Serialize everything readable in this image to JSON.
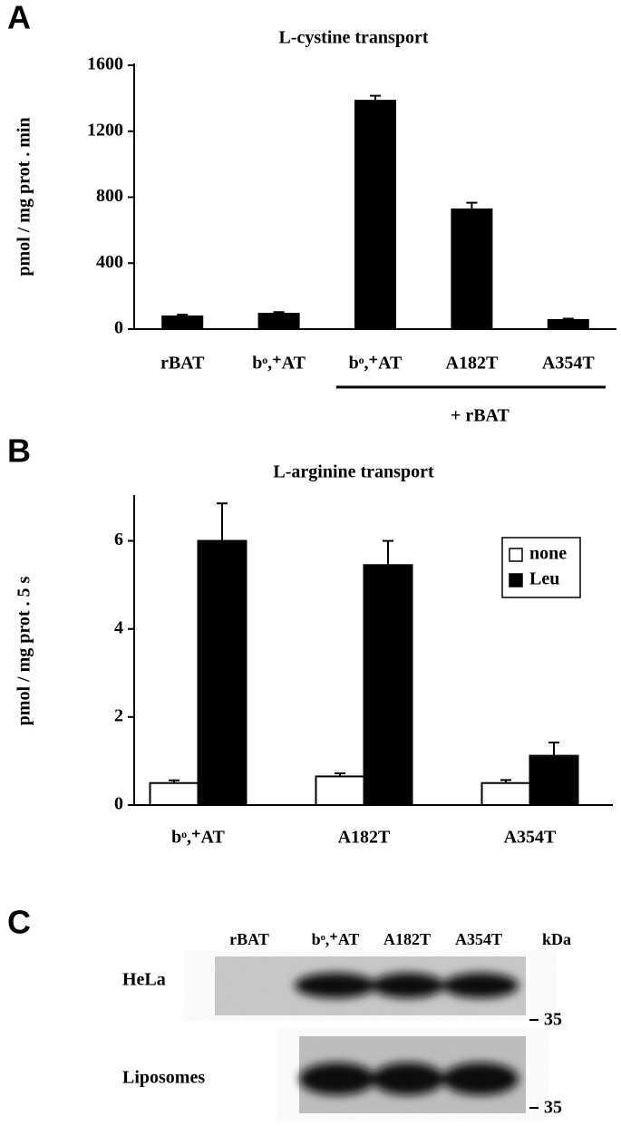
{
  "chart_data": [
    {
      "type": "bar",
      "panel_label": "A",
      "title": "L-cystine transport",
      "ylabel": "pmol / mg prot . min",
      "categories": [
        "rBAT",
        "bᵒ,⁺AT",
        "bᵒ,⁺AT",
        "A182T",
        "A354T"
      ],
      "values": [
        77,
        93,
        1385,
        726,
        55
      ],
      "errors": [
        10,
        10,
        30,
        40,
        8
      ],
      "color": "#000000",
      "annotation": "+ rBAT",
      "ylim": [
        0,
        1600
      ],
      "yticks": [
        0,
        400,
        800,
        1200,
        1600
      ],
      "grid": false
    },
    {
      "type": "grouped_bar",
      "panel_label": "B",
      "title": "L-arginine transport",
      "ylabel": "pmol / mg prot . 5 s",
      "categories": [
        "bᵒ,⁺AT",
        "A182T",
        "A354T"
      ],
      "series": [
        {
          "name": "none",
          "color": "#ffffff",
          "values": [
            0.5,
            0.65,
            0.5
          ],
          "errors": [
            0.06,
            0.07,
            0.07
          ]
        },
        {
          "name": "Leu",
          "color": "#000000",
          "values": [
            6.0,
            5.45,
            1.12
          ],
          "errors": [
            0.85,
            0.55,
            0.3
          ]
        }
      ],
      "legend": "upper right",
      "ylim": [
        0,
        7
      ],
      "yticks": [
        0,
        2,
        4,
        6
      ],
      "grid": false
    }
  ],
  "blot": {
    "panel_label": "C",
    "lanes": [
      "rBAT",
      "bᵒ,⁺AT",
      "A182T",
      "A354T"
    ],
    "unit": "kDa",
    "rows": [
      {
        "label": "HeLa",
        "marker": 35
      },
      {
        "label": "Liposomes",
        "marker": 35
      }
    ]
  }
}
